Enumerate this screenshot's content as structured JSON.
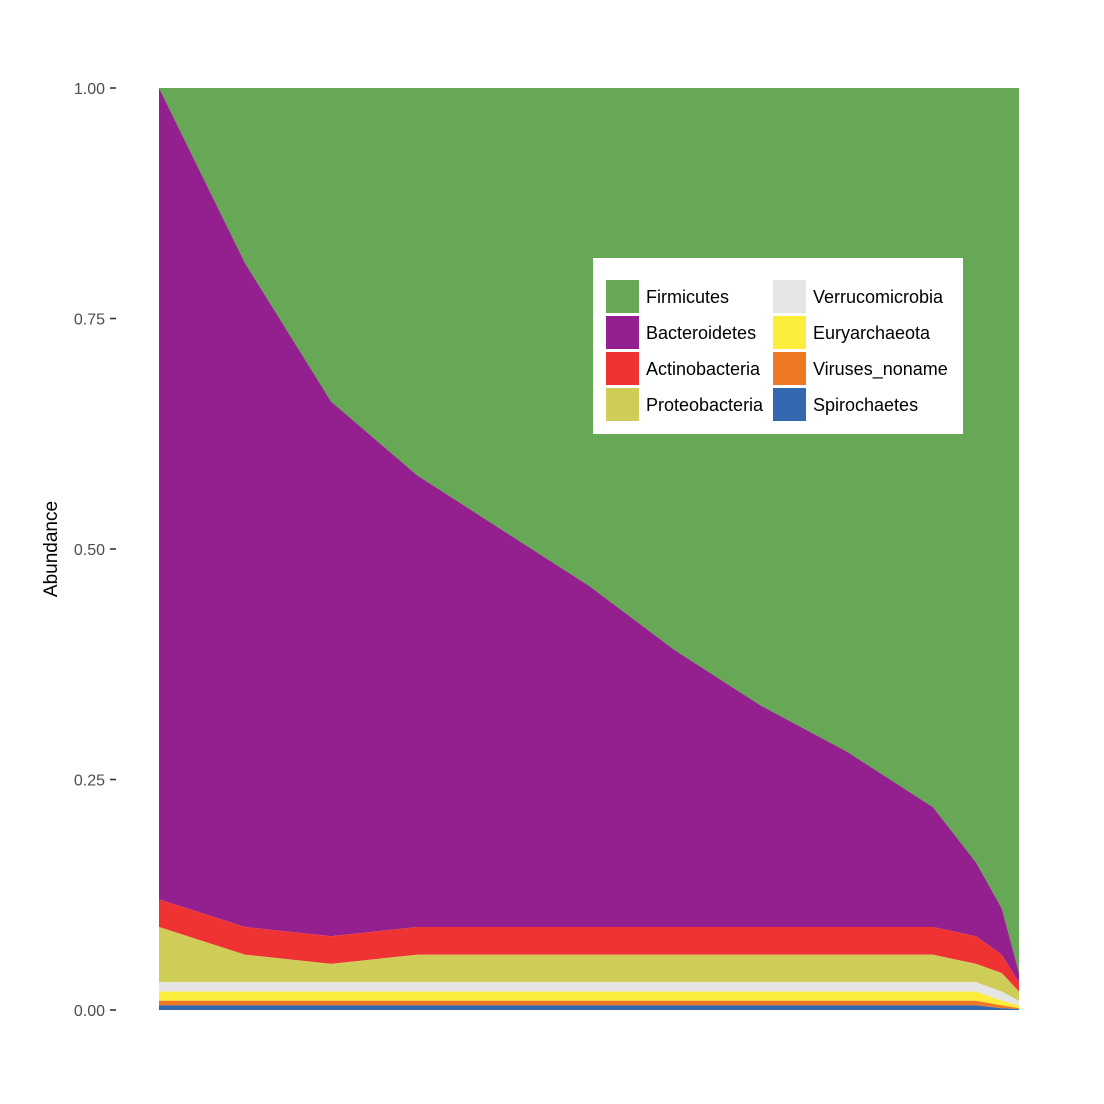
{
  "chart_data": {
    "type": "area",
    "title": "",
    "xlabel": "",
    "ylabel": "Abundance",
    "ylim": [
      0,
      1
    ],
    "y_ticks": [
      "0.00",
      "0.25",
      "0.50",
      "0.75",
      "1.00"
    ],
    "y_tick_values": [
      0,
      0.25,
      0.5,
      0.75,
      1
    ],
    "grid": false,
    "legend_position": "top-right",
    "stacking_order": [
      "Firmicutes",
      "Bacteroidetes",
      "Actinobacteria",
      "Proteobacteria",
      "Verrucomicrobia",
      "Euryarchaeota",
      "Viruses_noname",
      "Spirochaetes"
    ],
    "x": [
      0,
      0.1,
      0.2,
      0.3,
      0.4,
      0.5,
      0.6,
      0.7,
      0.8,
      0.9,
      0.95,
      0.98,
      1.0
    ],
    "series": [
      {
        "name": "Firmicutes",
        "color": "#66a856",
        "values": [
          0.0,
          0.19,
          0.34,
          0.42,
          0.48,
          0.54,
          0.61,
          0.67,
          0.72,
          0.78,
          0.84,
          0.89,
          0.96
        ]
      },
      {
        "name": "Bacteroidetes",
        "color": "#93208e",
        "values": [
          0.88,
          0.72,
          0.58,
          0.49,
          0.43,
          0.37,
          0.3,
          0.24,
          0.19,
          0.13,
          0.08,
          0.05,
          0.01
        ]
      },
      {
        "name": "Actinobacteria",
        "color": "#ee3332",
        "values": [
          0.03,
          0.03,
          0.03,
          0.03,
          0.03,
          0.03,
          0.03,
          0.03,
          0.03,
          0.03,
          0.03,
          0.02,
          0.01
        ]
      },
      {
        "name": "Proteobacteria",
        "color": "#cdcd57",
        "values": [
          0.06,
          0.03,
          0.02,
          0.03,
          0.03,
          0.03,
          0.03,
          0.03,
          0.03,
          0.03,
          0.02,
          0.02,
          0.01
        ]
      },
      {
        "name": "Verrucomicrobia",
        "color": "#e5e5e5",
        "values": [
          0.01,
          0.01,
          0.01,
          0.01,
          0.01,
          0.01,
          0.01,
          0.01,
          0.01,
          0.01,
          0.01,
          0.01,
          0.005
        ]
      },
      {
        "name": "Euryarchaeota",
        "color": "#fced3a",
        "values": [
          0.01,
          0.01,
          0.01,
          0.01,
          0.01,
          0.01,
          0.01,
          0.01,
          0.01,
          0.01,
          0.01,
          0.005,
          0.003
        ]
      },
      {
        "name": "Viruses_noname",
        "color": "#ee7823",
        "values": [
          0.005,
          0.005,
          0.005,
          0.005,
          0.005,
          0.005,
          0.005,
          0.005,
          0.005,
          0.005,
          0.005,
          0.003,
          0.001
        ]
      },
      {
        "name": "Spirochaetes",
        "color": "#3367b0",
        "values": [
          0.005,
          0.005,
          0.005,
          0.005,
          0.005,
          0.005,
          0.005,
          0.005,
          0.005,
          0.005,
          0.005,
          0.002,
          0.001
        ]
      }
    ],
    "legend": {
      "columns": [
        [
          "Firmicutes",
          "Bacteroidetes",
          "Actinobacteria",
          "Proteobacteria"
        ],
        [
          "Verrucomicrobia",
          "Euryarchaeota",
          "Viruses_noname",
          "Spirochaetes"
        ]
      ]
    }
  }
}
